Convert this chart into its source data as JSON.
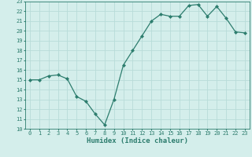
{
  "x": [
    0,
    1,
    2,
    3,
    4,
    5,
    6,
    7,
    8,
    9,
    10,
    11,
    12,
    13,
    14,
    15,
    16,
    17,
    18,
    19,
    20,
    21,
    22,
    23
  ],
  "y": [
    15.0,
    15.0,
    15.4,
    15.5,
    15.1,
    13.3,
    12.8,
    11.5,
    10.4,
    13.0,
    16.5,
    18.0,
    19.5,
    21.0,
    21.7,
    21.5,
    21.5,
    22.6,
    22.7,
    21.5,
    22.5,
    21.3,
    19.9,
    19.8
  ],
  "xlabel": "Humidex (Indice chaleur)",
  "ylim": [
    10,
    23
  ],
  "xlim": [
    -0.5,
    23.5
  ],
  "yticks": [
    10,
    11,
    12,
    13,
    14,
    15,
    16,
    17,
    18,
    19,
    20,
    21,
    22,
    23
  ],
  "xticks": [
    0,
    1,
    2,
    3,
    4,
    5,
    6,
    7,
    8,
    9,
    10,
    11,
    12,
    13,
    14,
    15,
    16,
    17,
    18,
    19,
    20,
    21,
    22,
    23
  ],
  "line_color": "#2d7d6e",
  "marker_color": "#2d7d6e",
  "bg_color": "#d4eeeb",
  "grid_color": "#b8dcd8",
  "tick_label_color": "#2d7d6e",
  "xlabel_color": "#2d7d6e",
  "font_family": "monospace",
  "tick_fontsize": 5.0,
  "xlabel_fontsize": 6.5
}
